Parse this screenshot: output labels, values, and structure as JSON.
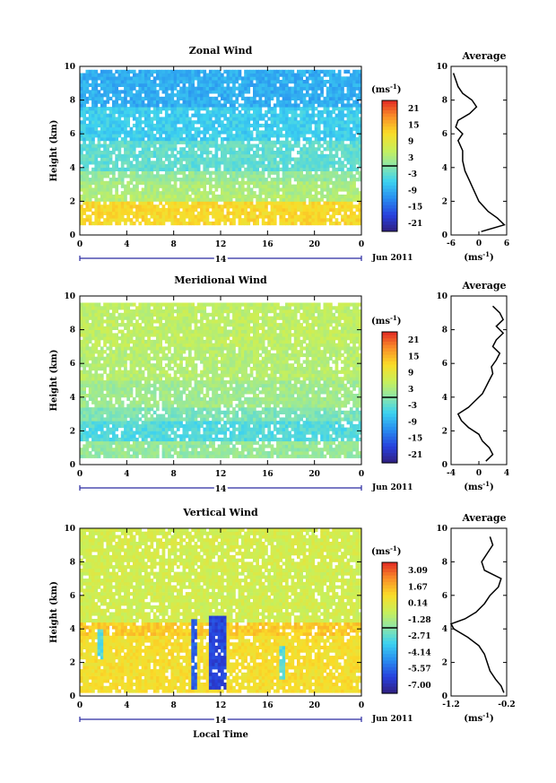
{
  "chart_data": [
    {
      "type": "heatmap",
      "title": "Zonal Wind",
      "ylabel": "Height (km)",
      "ylim": [
        0,
        10
      ],
      "xlim": [
        0,
        24
      ],
      "x_ticks": [
        "0",
        "4",
        "8",
        "12",
        "16",
        "20",
        "0"
      ],
      "y_ticks": [
        "0",
        "2",
        "4",
        "6",
        "8",
        "10"
      ],
      "date_marker": "14",
      "date_label": "Jun 2011",
      "colorbar": {
        "unit_base": "(ms",
        "unit_exp": "-1",
        "unit_close": ")",
        "ticks": [
          "21",
          "15",
          "9",
          "3",
          "-3",
          "-9",
          "-15",
          "-21"
        ],
        "range": [
          -24,
          24
        ]
      },
      "layers": [
        {
          "h": [
            0.6,
            1.8
          ],
          "v": 12
        },
        {
          "h": [
            1.8,
            2.3
          ],
          "v": 4
        },
        {
          "h": [
            2.3,
            3.1
          ],
          "v": 3
        },
        {
          "h": [
            3.1,
            3.7
          ],
          "v": 1
        },
        {
          "h": [
            3.7,
            5.5
          ],
          "v": -3
        },
        {
          "h": [
            5.5,
            7.5
          ],
          "v": -6
        },
        {
          "h": [
            7.5,
            9.6
          ],
          "v": -9
        }
      ],
      "profile": {
        "title": "Average",
        "xlim": [
          -6,
          6
        ],
        "x_ticks": [
          "-6",
          "0",
          "6"
        ],
        "xlabel_base": "(ms",
        "xlabel_exp": "-1",
        "xlabel_close": ")",
        "h": [
          0.2,
          0.6,
          1.0,
          1.4,
          2.0,
          2.6,
          3.2,
          3.8,
          4.4,
          5.0,
          5.6,
          6.0,
          6.4,
          6.8,
          7.2,
          7.6,
          8.0,
          8.4,
          8.8,
          9.2,
          9.6
        ],
        "v": [
          0.5,
          5.5,
          4.0,
          2.0,
          0.0,
          -1.0,
          -2.0,
          -3.0,
          -3.5,
          -3.5,
          -4.5,
          -3.5,
          -5.0,
          -4.5,
          -2.0,
          -0.5,
          -1.5,
          -3.5,
          -4.5,
          -5.0,
          -5.5
        ]
      }
    },
    {
      "type": "heatmap",
      "title": "Meridional Wind",
      "ylabel": "Height (km)",
      "ylim": [
        0,
        10
      ],
      "xlim": [
        0,
        24
      ],
      "x_ticks": [
        "0",
        "4",
        "8",
        "12",
        "16",
        "20",
        "0"
      ],
      "y_ticks": [
        "0",
        "2",
        "4",
        "6",
        "8",
        "10"
      ],
      "date_marker": "14",
      "date_label": "Jun 2011",
      "colorbar": {
        "unit_base": "(ms",
        "unit_exp": "-1",
        "unit_close": ")",
        "ticks": [
          "21",
          "15",
          "9",
          "3",
          "-3",
          "-9",
          "-15",
          "-21"
        ],
        "range": [
          -24,
          24
        ]
      },
      "layers": [
        {
          "h": [
            0.3,
            1.4
          ],
          "v": 1
        },
        {
          "h": [
            1.4,
            2.6
          ],
          "v": -4
        },
        {
          "h": [
            2.6,
            3.4
          ],
          "v": -1
        },
        {
          "h": [
            3.4,
            5.0
          ],
          "v": 2
        },
        {
          "h": [
            5.0,
            7.0
          ],
          "v": 4
        },
        {
          "h": [
            7.0,
            9.5
          ],
          "v": 5
        }
      ],
      "profile": {
        "title": "Average",
        "xlim": [
          -4,
          4
        ],
        "x_ticks": [
          "-4",
          "0",
          "4"
        ],
        "xlabel_base": "(ms",
        "xlabel_exp": "-1",
        "xlabel_close": ")",
        "h": [
          0.2,
          0.6,
          1.0,
          1.4,
          1.8,
          2.2,
          2.6,
          3.0,
          3.4,
          3.8,
          4.2,
          4.6,
          5.0,
          5.4,
          5.8,
          6.2,
          6.6,
          7.0,
          7.4,
          7.8,
          8.2,
          8.6,
          9.0,
          9.4
        ],
        "v": [
          1.0,
          2.0,
          1.5,
          0.5,
          0.0,
          -1.5,
          -2.5,
          -3.0,
          -1.5,
          -0.5,
          0.5,
          1.0,
          1.5,
          2.0,
          1.8,
          2.5,
          3.0,
          2.0,
          2.5,
          3.5,
          2.5,
          3.5,
          3.0,
          2.0
        ]
      }
    },
    {
      "type": "heatmap",
      "title": "Vertical Wind",
      "ylabel": "Height (km)",
      "xlabel": "Local Time",
      "ylim": [
        0,
        10
      ],
      "xlim": [
        0,
        24
      ],
      "x_ticks": [
        "0",
        "4",
        "8",
        "12",
        "16",
        "20",
        "0"
      ],
      "y_ticks": [
        "0",
        "2",
        "4",
        "6",
        "8",
        "10"
      ],
      "date_marker": "14",
      "date_label": "Jun 2011",
      "colorbar": {
        "unit_base": "(ms",
        "unit_exp": "-1",
        "unit_close": ")",
        "ticks": [
          "3.09",
          "1.67",
          "0.14",
          "-1.28",
          "-2.71",
          "-4.14",
          "-5.57",
          "-7.00"
        ],
        "range": [
          -8.0,
          4.0
        ]
      },
      "layers": [
        {
          "h": [
            0.2,
            3.6
          ],
          "v": 0.8
        },
        {
          "h": [
            3.6,
            4.3
          ],
          "v": 1.3
        },
        {
          "h": [
            4.3,
            7.5
          ],
          "v": -0.3
        },
        {
          "h": [
            7.5,
            9.8
          ],
          "v": -0.2
        }
      ],
      "downdrafts": [
        {
          "t": [
            9.3,
            10.0
          ],
          "h": [
            0.3,
            4.6
          ],
          "v": -6.0
        },
        {
          "t": [
            11.0,
            12.3
          ],
          "h": [
            0.3,
            4.8
          ],
          "v": -6.5
        },
        {
          "t": [
            1.5,
            1.8
          ],
          "h": [
            2.0,
            4.0
          ],
          "v": -3.0
        },
        {
          "t": [
            17.0,
            17.5
          ],
          "h": [
            1.0,
            3.0
          ],
          "v": -3.0
        }
      ],
      "profile": {
        "title": "Average",
        "xlim": [
          -1.2,
          -0.2
        ],
        "x_ticks": [
          "-1.2",
          "-0.2"
        ],
        "xlabel_base": "(ms",
        "xlabel_exp": "-1",
        "xlabel_close": ")",
        "h": [
          0.2,
          0.6,
          1.0,
          1.5,
          2.0,
          2.5,
          3.0,
          3.5,
          4.0,
          4.3,
          4.6,
          5.0,
          5.5,
          6.0,
          6.5,
          7.0,
          7.5,
          8.0,
          8.5,
          9.0,
          9.5
        ],
        "v": [
          -0.25,
          -0.3,
          -0.4,
          -0.5,
          -0.55,
          -0.6,
          -0.7,
          -0.9,
          -1.15,
          -1.2,
          -0.95,
          -0.75,
          -0.6,
          -0.5,
          -0.35,
          -0.3,
          -0.6,
          -0.65,
          -0.55,
          -0.45,
          -0.5
        ]
      }
    }
  ]
}
